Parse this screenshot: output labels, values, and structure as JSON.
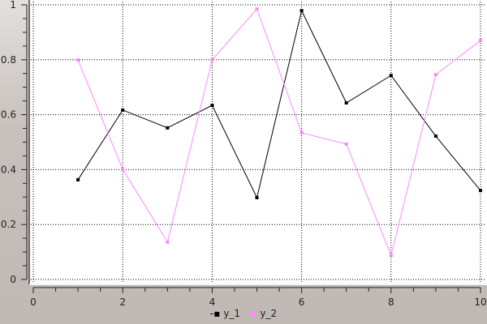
{
  "chart_data": {
    "type": "line",
    "x": [
      1,
      2,
      3,
      4,
      5,
      6,
      7,
      8,
      9,
      10
    ],
    "series": [
      {
        "name": "y_1",
        "color": "#000000",
        "marker": "square",
        "values": [
          0.363,
          0.617,
          0.552,
          0.634,
          0.298,
          0.979,
          0.643,
          0.743,
          0.522,
          0.324
        ]
      },
      {
        "name": "y_2",
        "color": "#ff88ff",
        "marker": "square",
        "values": [
          0.799,
          0.401,
          0.136,
          0.8,
          0.985,
          0.534,
          0.493,
          0.088,
          0.746,
          0.87
        ]
      }
    ],
    "xlim": [
      0,
      10
    ],
    "ylim": [
      0,
      1
    ],
    "xticks": [
      "0",
      "2",
      "4",
      "6",
      "8",
      "10"
    ],
    "yticks": [
      "0",
      "0.2",
      "0.4",
      "0.6",
      "0.8",
      "1"
    ],
    "grid": true,
    "legend_position": "bottom"
  }
}
